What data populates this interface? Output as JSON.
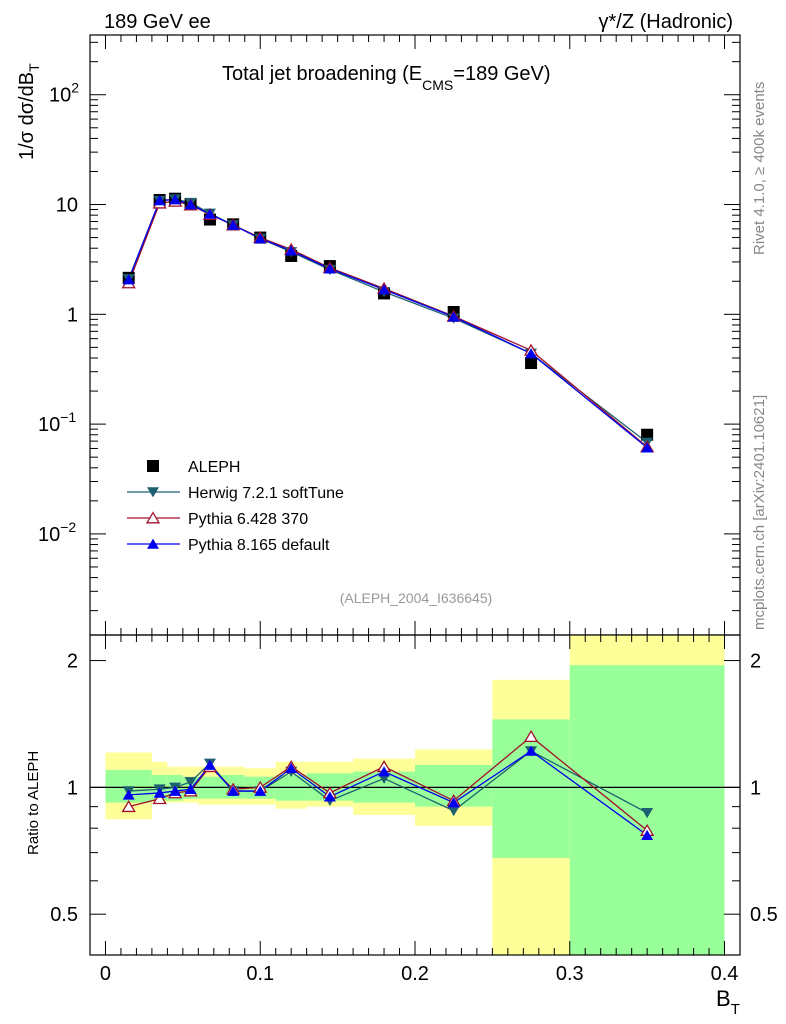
{
  "header": {
    "left": "189 GeV ee",
    "right": "γ*/Z (Hadronic)"
  },
  "side_labels": {
    "top": "Rivet 4.1.0, ≥ 400k events",
    "bottom": "mcplots.cern.ch [arXiv:2401.10621]"
  },
  "colors": {
    "data": "#000000",
    "herwig": "#1e6070",
    "pythia6": "#a0102a",
    "pythia8": "#0000ee",
    "band_inner": "#99ff99",
    "band_outer": "#ffff99"
  },
  "chart_data": [
    {
      "type": "line",
      "scale": "log",
      "title_main": "Total jet broadening (E",
      "title_sub": "CMS",
      "title_tail": "=189 GeV)",
      "watermark": "(ALEPH_2004_I636645)",
      "ylabel_main": "1/σ  dσ/dB",
      "ylabel_sub": "T",
      "xlim": [
        -0.01,
        0.41
      ],
      "ylim": [
        0.0012,
        350
      ],
      "y_ticks": [
        {
          "value": 100,
          "base": "10",
          "exp": "2"
        },
        {
          "value": 10,
          "base": "10",
          "exp": ""
        },
        {
          "value": 1,
          "base": "1",
          "exp": ""
        },
        {
          "value": 0.1,
          "base": "10",
          "exp": "−1"
        },
        {
          "value": 0.01,
          "base": "10",
          "exp": "−2"
        }
      ],
      "x": [
        0.015,
        0.035,
        0.045,
        0.055,
        0.0675,
        0.0825,
        0.1,
        0.12,
        0.145,
        0.18,
        0.225,
        0.275,
        0.35
      ],
      "series": [
        {
          "name": "ALEPH",
          "key": "data",
          "marker": "square",
          "values": [
            2.15,
            11.0,
            11.3,
            10.1,
            7.3,
            6.6,
            5.0,
            3.4,
            2.75,
            1.55,
            1.05,
            0.36,
            0.08
          ]
        },
        {
          "name": "Herwig 7.2.1 softTune",
          "key": "herwig",
          "marker": "triangle-down",
          "values": [
            2.1,
            10.8,
            11.2,
            10.4,
            8.3,
            6.5,
            4.9,
            3.7,
            2.55,
            1.6,
            0.92,
            0.44,
            0.068
          ]
        },
        {
          "name": "Pythia 6.428 370",
          "key": "pythia6",
          "marker": "triangle-up-open",
          "values": [
            1.93,
            10.3,
            10.7,
            9.9,
            8.1,
            6.5,
            5.0,
            3.9,
            2.65,
            1.72,
            0.96,
            0.47,
            0.062
          ]
        },
        {
          "name": "Pythia 8.165 default",
          "key": "pythia8",
          "marker": "triangle-up",
          "values": [
            2.07,
            10.9,
            11.1,
            10.0,
            8.2,
            6.5,
            4.9,
            3.8,
            2.6,
            1.68,
            0.95,
            0.44,
            0.061
          ]
        }
      ]
    },
    {
      "type": "line",
      "scale": "log",
      "ylabel": "Ratio to ALEPH",
      "xlabel_main": "B",
      "xlabel_sub": "T",
      "xlim": [
        -0.01,
        0.41
      ],
      "ylim": [
        0.4,
        2.3
      ],
      "y_ticks_left": [
        "0.5",
        "1",
        "2"
      ],
      "y_ticks_right": [
        "0.5",
        "1",
        "2"
      ],
      "y_tick_values": [
        0.5,
        1,
        2
      ],
      "x_ticks": [
        "0",
        "0.1",
        "0.2",
        "0.3",
        "0.4"
      ],
      "x_tick_values": [
        0,
        0.1,
        0.2,
        0.3,
        0.4
      ],
      "bands": [
        {
          "x0": 0.0,
          "x1": 0.03,
          "inner": [
            0.92,
            1.1
          ],
          "outer": [
            0.84,
            1.21
          ]
        },
        {
          "x0": 0.03,
          "x1": 0.04,
          "inner": [
            0.93,
            1.07
          ],
          "outer": [
            0.92,
            1.15
          ]
        },
        {
          "x0": 0.04,
          "x1": 0.05,
          "inner": [
            0.93,
            1.07
          ],
          "outer": [
            0.92,
            1.12
          ]
        },
        {
          "x0": 0.05,
          "x1": 0.06,
          "inner": [
            0.94,
            1.06
          ],
          "outer": [
            0.92,
            1.12
          ]
        },
        {
          "x0": 0.06,
          "x1": 0.075,
          "inner": [
            0.94,
            1.06
          ],
          "outer": [
            0.91,
            1.12
          ]
        },
        {
          "x0": 0.075,
          "x1": 0.09,
          "inner": [
            0.94,
            1.07
          ],
          "outer": [
            0.91,
            1.12
          ]
        },
        {
          "x0": 0.09,
          "x1": 0.11,
          "inner": [
            0.94,
            1.06
          ],
          "outer": [
            0.91,
            1.11
          ]
        },
        {
          "x0": 0.11,
          "x1": 0.13,
          "inner": [
            0.93,
            1.07
          ],
          "outer": [
            0.89,
            1.15
          ]
        },
        {
          "x0": 0.13,
          "x1": 0.16,
          "inner": [
            0.93,
            1.08
          ],
          "outer": [
            0.9,
            1.15
          ]
        },
        {
          "x0": 0.16,
          "x1": 0.2,
          "inner": [
            0.92,
            1.09
          ],
          "outer": [
            0.86,
            1.17
          ]
        },
        {
          "x0": 0.2,
          "x1": 0.25,
          "inner": [
            0.9,
            1.13
          ],
          "outer": [
            0.81,
            1.23
          ]
        },
        {
          "x0": 0.25,
          "x1": 0.3,
          "inner": [
            0.68,
            1.45
          ],
          "outer": [
            0.35,
            1.8
          ]
        },
        {
          "x0": 0.3,
          "x1": 0.4,
          "inner": [
            0.35,
            1.95
          ],
          "outer": [
            0.35,
            2.35
          ]
        }
      ],
      "x": [
        0.015,
        0.035,
        0.045,
        0.055,
        0.0675,
        0.0825,
        0.1,
        0.12,
        0.145,
        0.18,
        0.225,
        0.275,
        0.35
      ],
      "series": [
        {
          "name": "Herwig 7.2.1 softTune",
          "key": "herwig",
          "marker": "triangle-down",
          "values": [
            0.98,
            0.99,
            1.0,
            1.03,
            1.14,
            0.98,
            0.98,
            1.09,
            0.93,
            1.05,
            0.88,
            1.22,
            0.87
          ]
        },
        {
          "name": "Pythia 6.428 370",
          "key": "pythia6",
          "marker": "triangle-up-open",
          "values": [
            0.9,
            0.94,
            0.97,
            0.98,
            1.12,
            0.99,
            1.0,
            1.12,
            0.97,
            1.12,
            0.93,
            1.32,
            0.79
          ]
        },
        {
          "name": "Pythia 8.165 default",
          "key": "pythia8",
          "marker": "triangle-up",
          "values": [
            0.96,
            0.97,
            0.98,
            0.99,
            1.13,
            0.98,
            0.98,
            1.11,
            0.95,
            1.09,
            0.92,
            1.22,
            0.77
          ]
        }
      ]
    }
  ]
}
